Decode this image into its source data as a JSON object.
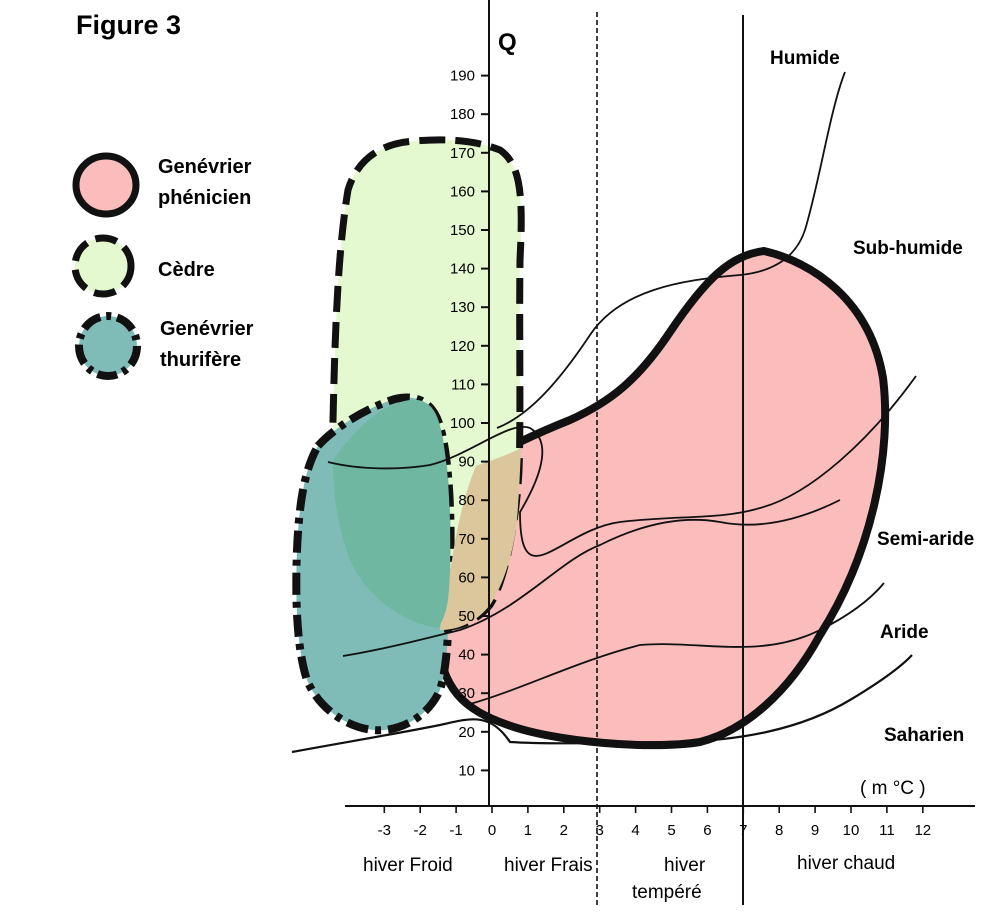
{
  "figure_title": "Figure 3",
  "colors": {
    "phenicien": "#fbbcbc",
    "cedre": "#e4f9cf",
    "thurifere": "#7fbcb8",
    "overlap_phen_cedre": "#dcc79c",
    "overlap_cedre_thur": "#6fb7a0"
  },
  "legend": [
    {
      "label_lines": [
        "Genévrier",
        "phénicien"
      ],
      "color": "#fbbcbc",
      "border": "solid"
    },
    {
      "label_lines": [
        "Cèdre"
      ],
      "color": "#e4f9cf",
      "border": "dashed"
    },
    {
      "label_lines": [
        "Genévrier",
        "thurifère"
      ],
      "color": "#7fbcb8",
      "border": "dash-dot"
    }
  ],
  "y_axis": {
    "label": "Q",
    "ticks": [
      "10",
      "20",
      "30",
      "40",
      "50",
      "60",
      "70",
      "80",
      "90",
      "100",
      "110",
      "120",
      "130",
      "140",
      "150",
      "160",
      "170",
      "180",
      "190"
    ]
  },
  "x_axis": {
    "unit_label": "( m °C )",
    "ticks": [
      "-3",
      "-2",
      "-1",
      "0",
      "1",
      "2",
      "3",
      "4",
      "5",
      "6",
      "7",
      "8",
      "9",
      "10",
      "11",
      "12"
    ]
  },
  "winter_zones": [
    {
      "label_lines": [
        "hiver Froid"
      ]
    },
    {
      "label_lines": [
        "hiver Frais"
      ]
    },
    {
      "label_lines": [
        "hiver",
        "tempéré"
      ]
    },
    {
      "label_lines": [
        "hiver chaud"
      ]
    }
  ],
  "climate_zones": [
    "Humide",
    "Sub-humide",
    "Semi-aride",
    "Aride",
    "Saharien"
  ]
}
